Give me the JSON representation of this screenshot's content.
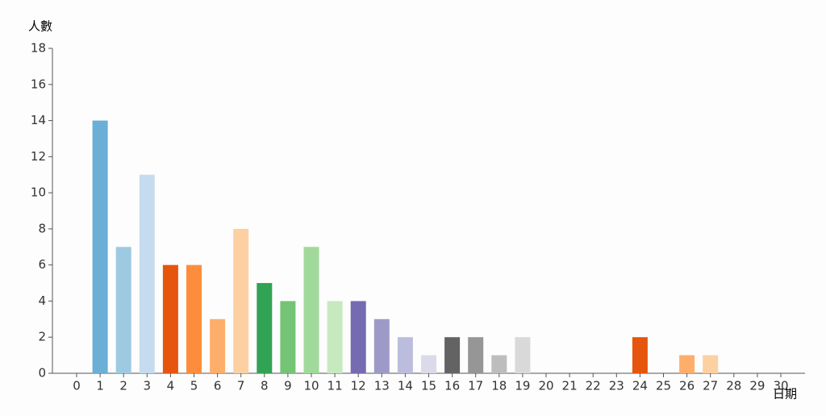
{
  "chart_data": {
    "type": "bar",
    "y_label": "人數",
    "x_label": "日期",
    "categories": [
      "0",
      "1",
      "2",
      "3",
      "4",
      "5",
      "6",
      "7",
      "8",
      "9",
      "10",
      "11",
      "12",
      "13",
      "14",
      "15",
      "16",
      "17",
      "18",
      "19",
      "20",
      "21",
      "22",
      "23",
      "24",
      "25",
      "26",
      "27",
      "28",
      "29",
      "30"
    ],
    "values": [
      0,
      14,
      7,
      11,
      6,
      6,
      3,
      8,
      5,
      4,
      7,
      4,
      4,
      3,
      2,
      1,
      2,
      2,
      1,
      2,
      0,
      0,
      0,
      0,
      2,
      0,
      1,
      1,
      0,
      0,
      0
    ],
    "colors": [
      "#3182bd",
      "#6baed6",
      "#9ecae1",
      "#c6dbef",
      "#e6550d",
      "#fd8d3c",
      "#fdae6b",
      "#fdd0a2",
      "#31a354",
      "#74c476",
      "#a1d99b",
      "#c7e9c0",
      "#756bb1",
      "#9e9ac8",
      "#bcbddc",
      "#dadaeb",
      "#636363",
      "#969696",
      "#bdbdbd",
      "#d9d9d9",
      "#3182bd",
      "#6baed6",
      "#9ecae1",
      "#c6dbef",
      "#e6550d",
      "#fd8d3c",
      "#fdae6b",
      "#fdd0a2",
      "#31a354",
      "#74c476",
      "#a1d99b"
    ],
    "ylim": [
      0,
      18
    ],
    "yticks": [
      0,
      2,
      4,
      6,
      8,
      10,
      12,
      14,
      16,
      18
    ],
    "grid": false
  }
}
